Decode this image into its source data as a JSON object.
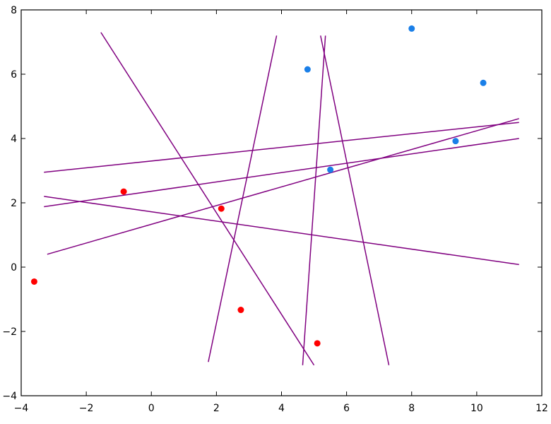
{
  "chart_data": {
    "type": "scatter",
    "title": "",
    "xlabel": "",
    "ylabel": "",
    "xlim": [
      -4,
      12
    ],
    "ylim": [
      -4,
      8
    ],
    "xticks": [
      -4,
      -2,
      0,
      2,
      4,
      6,
      8,
      10,
      12
    ],
    "yticks": [
      -4,
      -2,
      0,
      2,
      4,
      6,
      8
    ],
    "xtick_labels": [
      "−4",
      "−2",
      "0",
      "2",
      "4",
      "6",
      "8",
      "10",
      "12"
    ],
    "ytick_labels": [
      "−4",
      "−2",
      "0",
      "2",
      "4",
      "6",
      "8"
    ],
    "grid": false,
    "series": [
      {
        "color": "#ff0000",
        "points": [
          {
            "x": -3.6,
            "y": -0.45
          },
          {
            "x": -0.85,
            "y": 2.35
          },
          {
            "x": 2.15,
            "y": 1.82
          },
          {
            "x": 2.75,
            "y": -1.33
          },
          {
            "x": 5.1,
            "y": -2.37
          }
        ]
      },
      {
        "color": "#1a7fe8",
        "points": [
          {
            "x": 4.8,
            "y": 6.15
          },
          {
            "x": 5.5,
            "y": 3.03
          },
          {
            "x": 8.0,
            "y": 7.42
          },
          {
            "x": 9.35,
            "y": 3.92
          },
          {
            "x": 10.2,
            "y": 5.73
          }
        ]
      }
    ],
    "lines": {
      "color": "#800080",
      "segments": [
        {
          "x1": -1.55,
          "y1": 7.3,
          "x2": 5.0,
          "y2": -3.05
        },
        {
          "x1": 1.75,
          "y1": -2.95,
          "x2": 3.85,
          "y2": 7.2
        },
        {
          "x1": 4.65,
          "y1": -3.05,
          "x2": 5.35,
          "y2": 7.2
        },
        {
          "x1": 5.2,
          "y1": 7.2,
          "x2": 7.3,
          "y2": -3.05
        },
        {
          "x1": -3.3,
          "y1": 2.95,
          "x2": 11.3,
          "y2": 4.5
        },
        {
          "x1": -3.3,
          "y1": 1.88,
          "x2": 11.3,
          "y2": 4.0
        },
        {
          "x1": -3.2,
          "y1": 0.4,
          "x2": 11.3,
          "y2": 4.62
        },
        {
          "x1": -3.3,
          "y1": 2.2,
          "x2": 11.3,
          "y2": 0.08
        }
      ]
    }
  }
}
